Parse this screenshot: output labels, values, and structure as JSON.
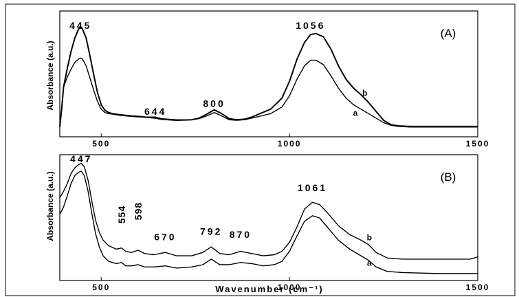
{
  "figure": {
    "ylabel": "Absorbance (a.u.)",
    "xlabel": "Wavenumber (cm⁻¹)"
  },
  "chart_data": [
    {
      "type": "line",
      "panel_label": "(A)",
      "xlim": [
        390,
        1500
      ],
      "ylim": [
        0,
        1
      ],
      "x_ticks": [
        500,
        1000,
        1500
      ],
      "x_tick_labels": [
        "500",
        "1000",
        "1500"
      ],
      "ylabel": "Absorbance (a.u.)",
      "xlabel": "",
      "grid": false,
      "peak_labels": [
        {
          "text": "445",
          "x": 445,
          "y": 0.9
        },
        {
          "text": "644",
          "x": 644,
          "y": 0.13
        },
        {
          "text": "800",
          "x": 800,
          "y": 0.2
        },
        {
          "text": "1056",
          "x": 1056,
          "y": 0.9
        }
      ],
      "series": [
        {
          "name": "b",
          "label_x": 1200,
          "label_y": 0.3,
          "x": [
            390,
            395,
            400,
            410,
            420,
            430,
            440,
            445,
            450,
            460,
            470,
            480,
            490,
            500,
            510,
            520,
            530,
            540,
            550,
            580,
            600,
            644,
            660,
            700,
            740,
            760,
            780,
            800,
            820,
            840,
            860,
            880,
            900,
            950,
            980,
            1000,
            1020,
            1040,
            1056,
            1070,
            1090,
            1110,
            1130,
            1150,
            1170,
            1190,
            1210,
            1230,
            1250,
            1270,
            1290,
            1320,
            1400,
            1500
          ],
          "y": [
            0.02,
            0.18,
            0.38,
            0.55,
            0.7,
            0.82,
            0.9,
            0.92,
            0.9,
            0.82,
            0.66,
            0.49,
            0.33,
            0.22,
            0.17,
            0.15,
            0.14,
            0.135,
            0.13,
            0.12,
            0.115,
            0.1,
            0.09,
            0.08,
            0.085,
            0.1,
            0.135,
            0.175,
            0.14,
            0.095,
            0.085,
            0.09,
            0.11,
            0.18,
            0.28,
            0.43,
            0.63,
            0.78,
            0.85,
            0.86,
            0.83,
            0.72,
            0.57,
            0.45,
            0.37,
            0.31,
            0.24,
            0.16,
            0.08,
            0.04,
            0.03,
            0.025,
            0.025,
            0.025
          ]
        },
        {
          "name": "a",
          "label_x": 1175,
          "label_y": 0.12,
          "x": [
            390,
            395,
            400,
            410,
            420,
            430,
            440,
            445,
            450,
            460,
            470,
            480,
            490,
            500,
            510,
            520,
            530,
            540,
            550,
            580,
            600,
            644,
            660,
            700,
            740,
            760,
            780,
            800,
            820,
            840,
            860,
            880,
            900,
            950,
            980,
            1000,
            1020,
            1040,
            1056,
            1070,
            1090,
            1110,
            1130,
            1150,
            1170,
            1190,
            1210,
            1230,
            1250,
            1270,
            1290,
            1320,
            1400,
            1500
          ],
          "y": [
            0.02,
            0.18,
            0.38,
            0.47,
            0.54,
            0.6,
            0.63,
            0.64,
            0.63,
            0.57,
            0.46,
            0.35,
            0.25,
            0.18,
            0.15,
            0.14,
            0.135,
            0.13,
            0.125,
            0.115,
            0.11,
            0.11,
            0.095,
            0.085,
            0.085,
            0.095,
            0.12,
            0.15,
            0.12,
            0.085,
            0.08,
            0.085,
            0.1,
            0.14,
            0.2,
            0.3,
            0.45,
            0.57,
            0.62,
            0.62,
            0.58,
            0.48,
            0.37,
            0.28,
            0.22,
            0.18,
            0.14,
            0.1,
            0.06,
            0.035,
            0.025,
            0.02,
            0.02,
            0.02
          ]
        }
      ]
    },
    {
      "type": "line",
      "panel_label": "(B)",
      "xlim": [
        390,
        1500
      ],
      "ylim": [
        0,
        1
      ],
      "x_ticks": [
        500,
        1000,
        1500
      ],
      "x_tick_labels": [
        "500",
        "1000",
        "1500"
      ],
      "ylabel": "Absorbance (a.u.)",
      "xlabel": "Wavenumber (cm⁻¹)",
      "grid": false,
      "peak_labels": [
        {
          "text": "447",
          "x": 447,
          "y": 1.0
        },
        {
          "text": "554",
          "x": 554,
          "y": 0.45,
          "vertical": true
        },
        {
          "text": "598",
          "x": 598,
          "y": 0.48,
          "vertical": true
        },
        {
          "text": "670",
          "x": 670,
          "y": 0.3
        },
        {
          "text": "792",
          "x": 792,
          "y": 0.35
        },
        {
          "text": "870",
          "x": 870,
          "y": 0.32
        },
        {
          "text": "1061",
          "x": 1061,
          "y": 0.74
        }
      ],
      "series": [
        {
          "name": "b",
          "label_x": 1212,
          "label_y": 0.3,
          "x": [
            390,
            400,
            410,
            420,
            430,
            440,
            447,
            455,
            465,
            475,
            485,
            495,
            505,
            520,
            540,
            554,
            565,
            580,
            598,
            615,
            640,
            670,
            700,
            740,
            770,
            792,
            815,
            840,
            870,
            900,
            930,
            960,
            980,
            1000,
            1020,
            1040,
            1061,
            1080,
            1100,
            1130,
            1160,
            1190,
            1210,
            1230,
            1260,
            1300,
            1400,
            1480,
            1500
          ],
          "y": [
            0.68,
            0.74,
            0.81,
            0.9,
            0.95,
            0.98,
            0.99,
            0.96,
            0.84,
            0.65,
            0.48,
            0.37,
            0.3,
            0.25,
            0.22,
            0.23,
            0.2,
            0.19,
            0.21,
            0.18,
            0.17,
            0.19,
            0.16,
            0.16,
            0.19,
            0.24,
            0.18,
            0.17,
            0.2,
            0.18,
            0.16,
            0.17,
            0.2,
            0.28,
            0.42,
            0.58,
            0.64,
            0.62,
            0.55,
            0.43,
            0.35,
            0.3,
            0.26,
            0.19,
            0.14,
            0.13,
            0.13,
            0.13,
            0.15
          ]
        },
        {
          "name": "a",
          "label_x": 1212,
          "label_y": 0.07,
          "x": [
            390,
            400,
            410,
            420,
            430,
            440,
            447,
            455,
            465,
            475,
            485,
            495,
            505,
            520,
            540,
            554,
            565,
            580,
            598,
            615,
            640,
            670,
            700,
            740,
            770,
            792,
            815,
            840,
            870,
            900,
            930,
            960,
            980,
            1000,
            1020,
            1040,
            1061,
            1080,
            1100,
            1130,
            1160,
            1190,
            1210,
            1230,
            1260,
            1300,
            1400,
            1480,
            1500
          ],
          "y": [
            0.53,
            0.6,
            0.7,
            0.81,
            0.88,
            0.91,
            0.92,
            0.88,
            0.74,
            0.54,
            0.36,
            0.24,
            0.16,
            0.11,
            0.09,
            0.1,
            0.07,
            0.07,
            0.08,
            0.06,
            0.06,
            0.07,
            0.05,
            0.06,
            0.08,
            0.13,
            0.08,
            0.08,
            0.1,
            0.09,
            0.07,
            0.08,
            0.11,
            0.2,
            0.34,
            0.47,
            0.52,
            0.5,
            0.42,
            0.3,
            0.22,
            0.16,
            0.12,
            0.06,
            0.02,
            0.01,
            0.0,
            0.0,
            0.0
          ]
        }
      ]
    }
  ]
}
